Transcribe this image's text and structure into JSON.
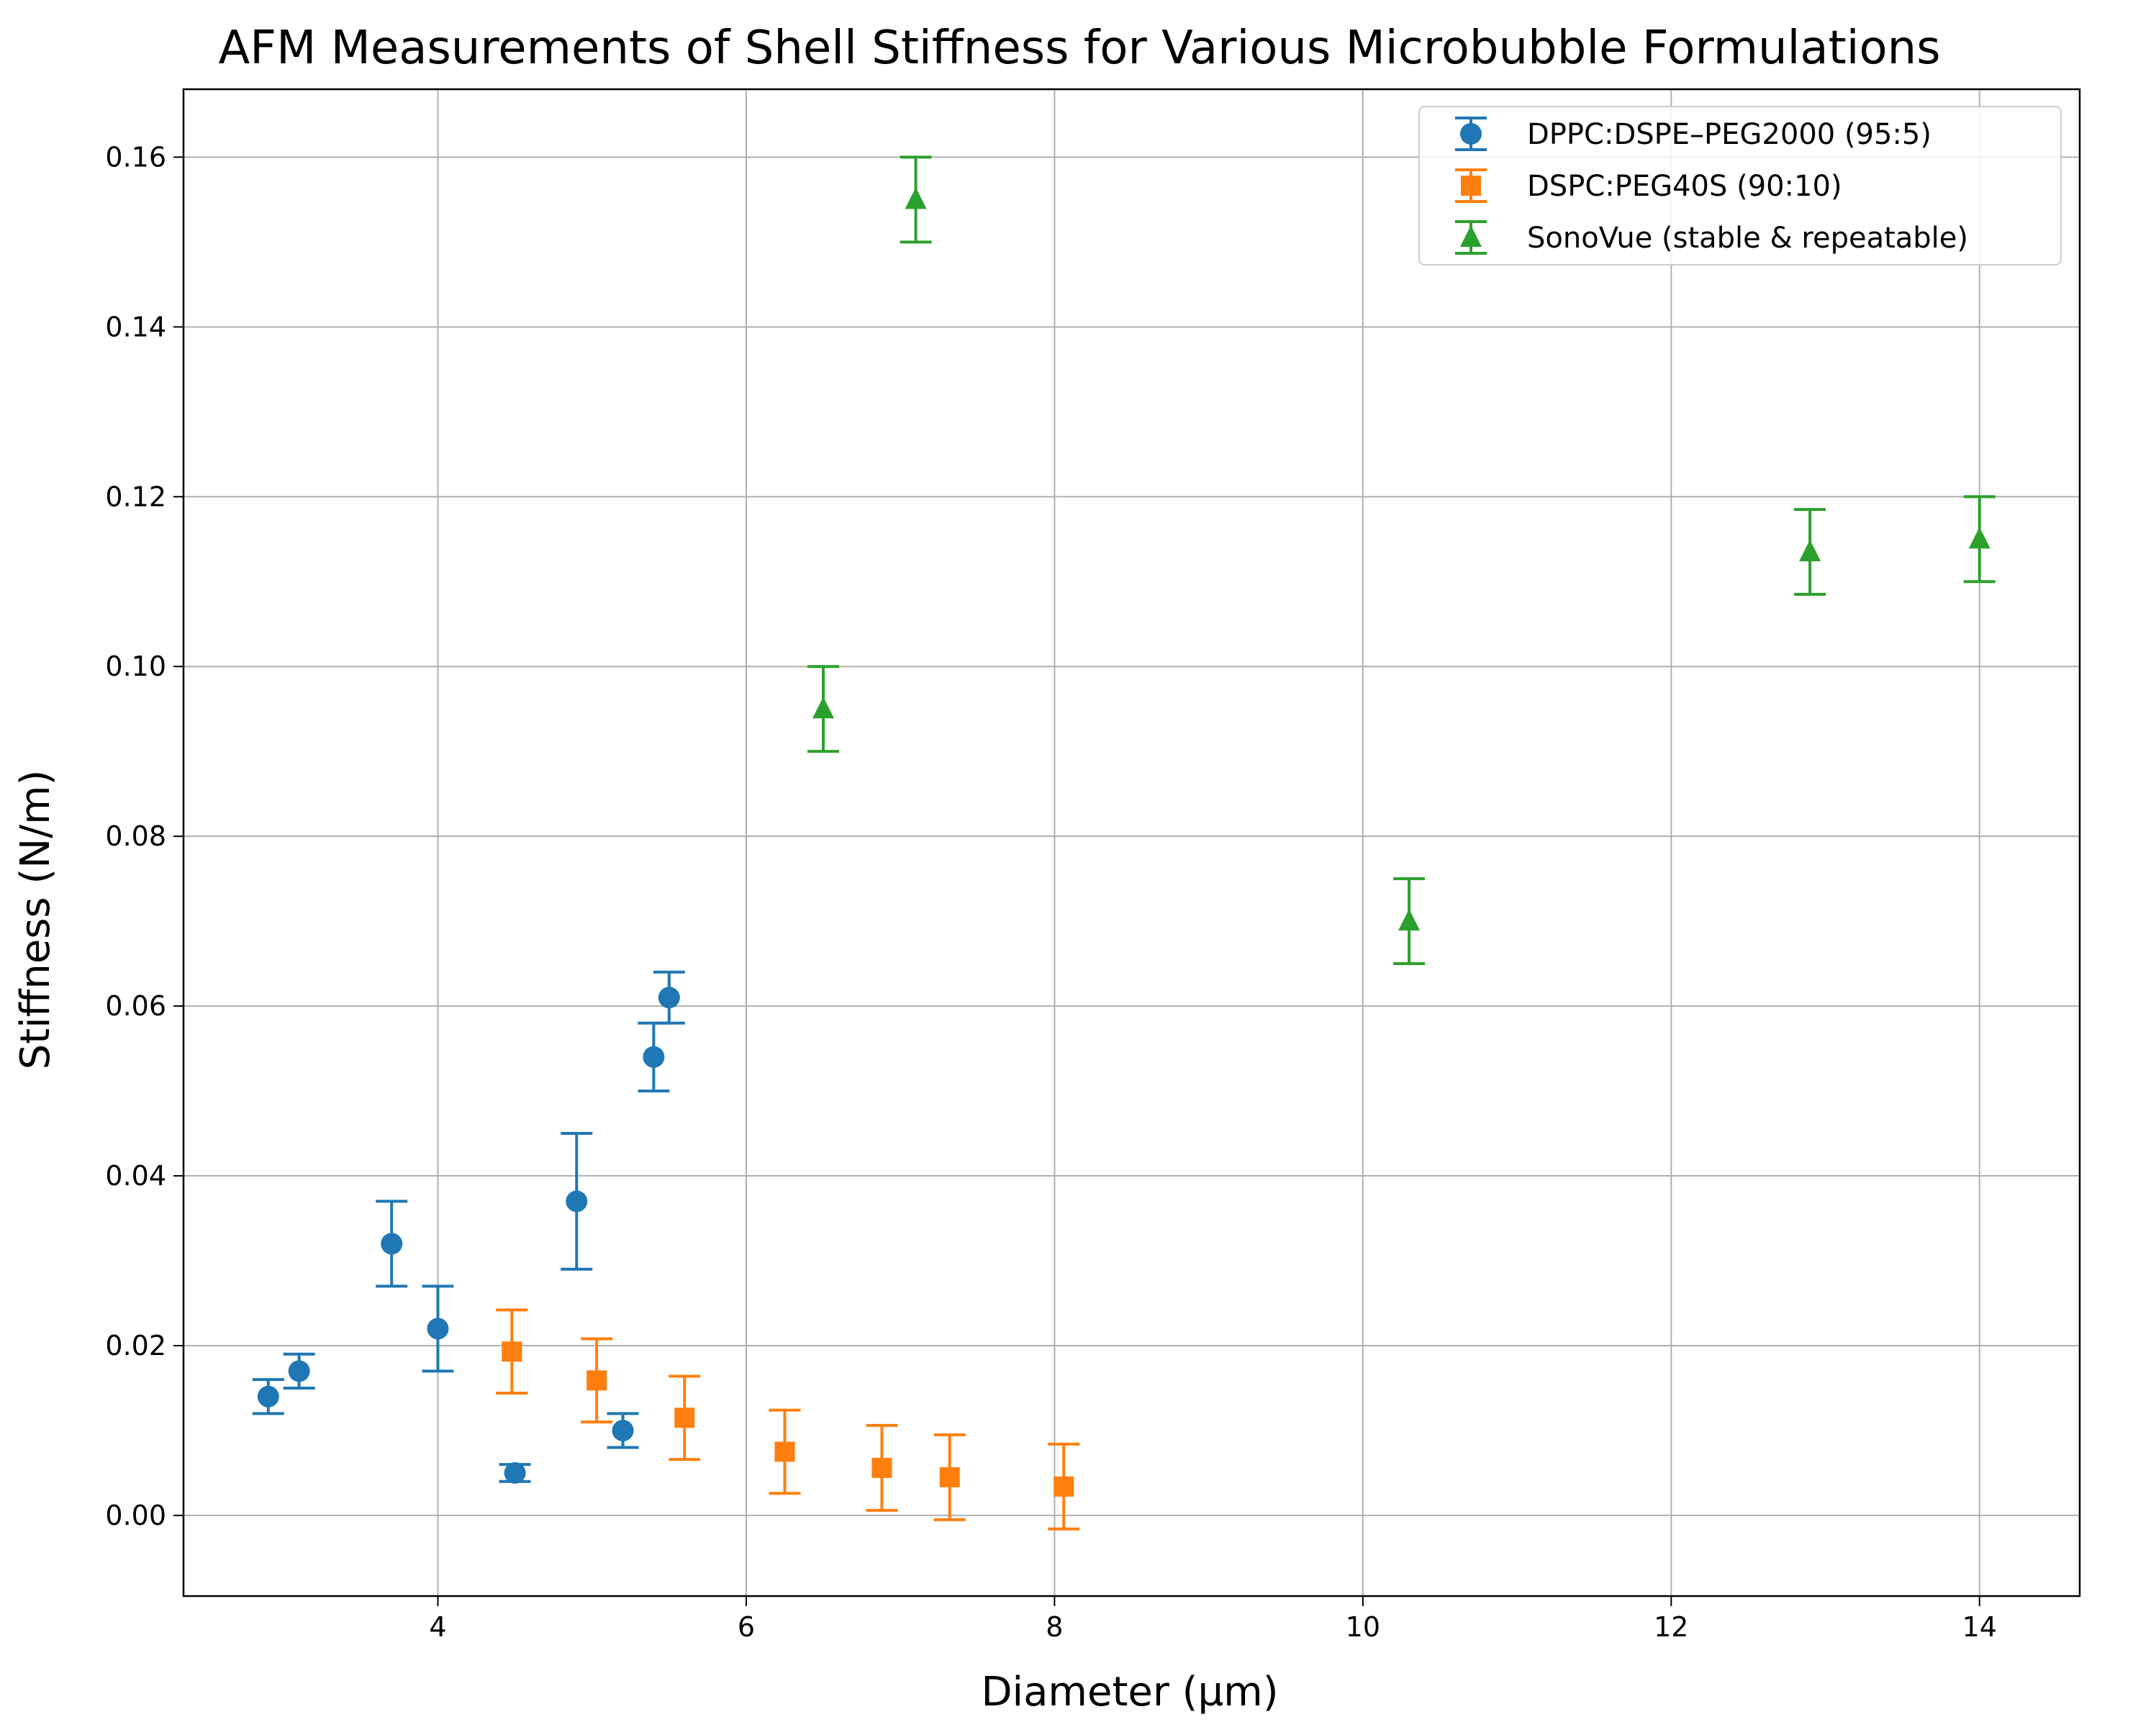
{
  "chart_data": {
    "type": "scatter",
    "title": "AFM Measurements of Shell Stiffness for Various Microbubble Formulations",
    "xlabel": "Diameter (µm)",
    "ylabel": "Stiffness (N/m)",
    "xlim": [
      2.35,
      14.65
    ],
    "ylim": [
      -0.0095,
      0.168
    ],
    "xticks": [
      4,
      6,
      8,
      10,
      12,
      14
    ],
    "xtick_labels": [
      "4",
      "6",
      "8",
      "10",
      "12",
      "14"
    ],
    "yticks": [
      0.0,
      0.02,
      0.04,
      0.06,
      0.08,
      0.1,
      0.12,
      0.14,
      0.16
    ],
    "ytick_labels": [
      "0.00",
      "0.02",
      "0.04",
      "0.06",
      "0.08",
      "0.10",
      "0.12",
      "0.14",
      "0.16"
    ],
    "grid": true,
    "legend_position": "top-right",
    "series": [
      {
        "name": "DPPC:DSPE–PEG2000 (95:5)",
        "color": "#1f77b4",
        "marker": "circle",
        "x": [
          2.9,
          3.1,
          3.7,
          4.0,
          4.5,
          4.9,
          5.2,
          5.4,
          5.5
        ],
        "y": [
          0.014,
          0.017,
          0.032,
          0.022,
          0.005,
          0.037,
          0.01,
          0.054,
          0.061
        ],
        "yerr": [
          0.002,
          0.002,
          0.005,
          0.005,
          0.001,
          0.008,
          0.002,
          0.004,
          0.003
        ]
      },
      {
        "name": "DSPC:PEG40S (90:10)",
        "color": "#ff7f0e",
        "marker": "square",
        "x": [
          4.48,
          5.03,
          5.6,
          6.25,
          6.88,
          7.32,
          8.06
        ],
        "y": [
          0.0193,
          0.0159,
          0.0115,
          0.0075,
          0.0056,
          0.0045,
          0.0034
        ],
        "yerr": [
          0.0049,
          0.0049,
          0.0049,
          0.0049,
          0.005,
          0.005,
          0.005
        ]
      },
      {
        "name": "SonoVue (stable & repeatable)",
        "color": "#2ca02c",
        "marker": "triangle",
        "x": [
          6.5,
          7.1,
          10.3,
          12.9,
          14.0
        ],
        "y": [
          0.095,
          0.155,
          0.07,
          0.1135,
          0.115
        ],
        "yerr": [
          0.005,
          0.005,
          0.005,
          0.005,
          0.005
        ]
      }
    ]
  }
}
